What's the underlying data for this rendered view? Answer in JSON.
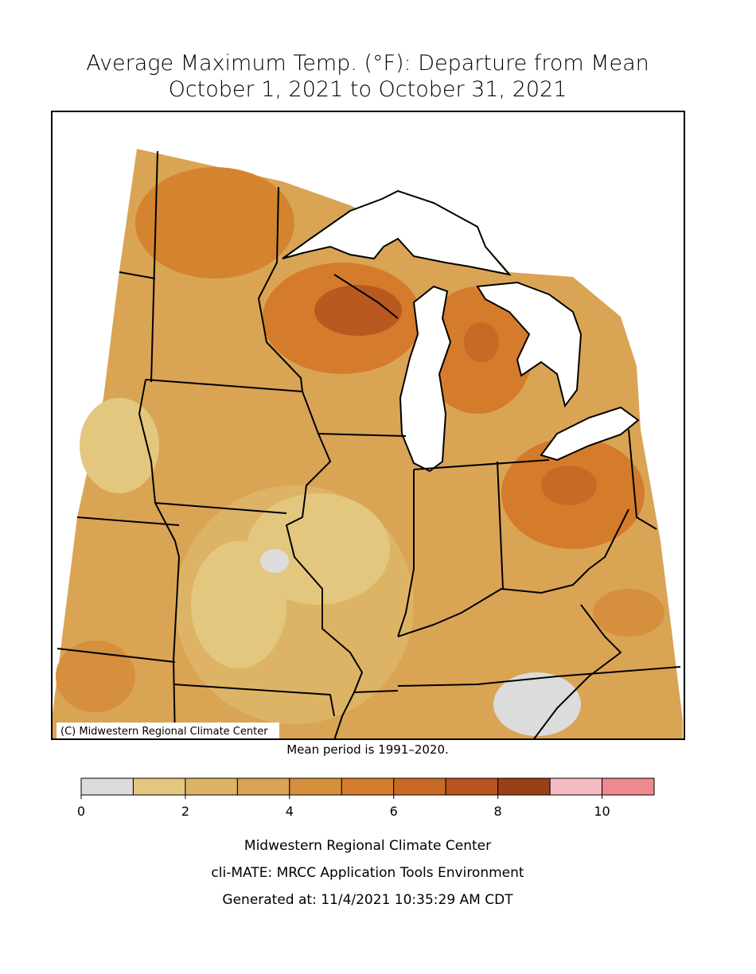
{
  "title": [
    "Average Maximum Temp. (°F): Departure from Mean",
    "October 1, 2021 to October 31, 2021"
  ],
  "map": {
    "credit": "(C) Midwestern Regional Climate Center",
    "note": "Mean period is 1991–2020."
  },
  "legend": {
    "bins": [
      0,
      1,
      2,
      3,
      4,
      5,
      6,
      7,
      8,
      9,
      10,
      11
    ],
    "colors": [
      "#dcdcdc",
      "#e3c77f",
      "#ddb466",
      "#d9a254",
      "#d68f3d",
      "#d47b2c",
      "#c86a25",
      "#b5541f",
      "#9a3f16",
      "#f4bac1",
      "#ee8a8f"
    ],
    "ticks": [
      0,
      2,
      4,
      6,
      8,
      10
    ]
  },
  "footer": [
    "Midwestern Regional Climate Center",
    "cli-MATE: MRCC Application Tools Environment",
    "Generated at: 11/4/2021 10:35:29 AM CDT"
  ]
}
